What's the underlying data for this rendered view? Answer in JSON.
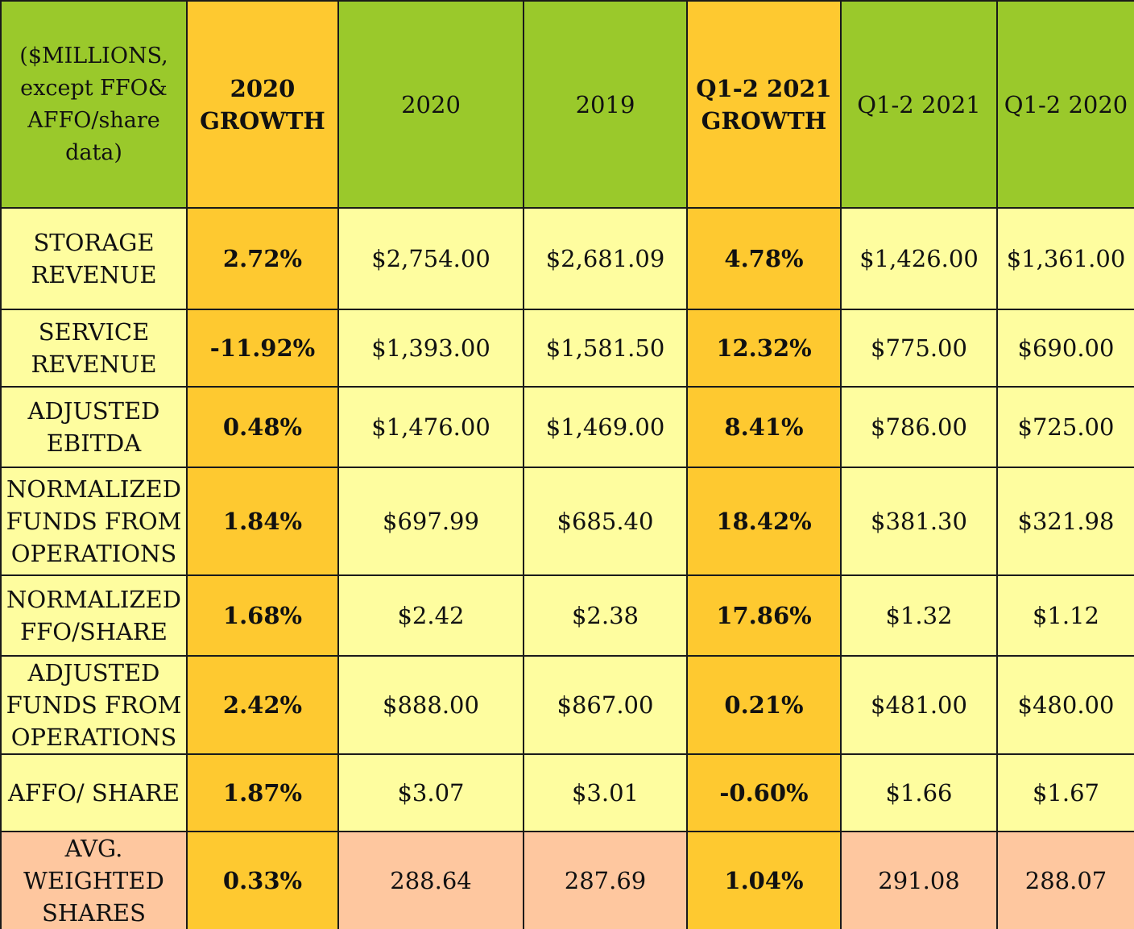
{
  "table": {
    "headers": [
      "($MILLIONS, except FFO& AFFO/share data)",
      "2020 GROWTH",
      "2020",
      "2019",
      "Q1-2 2021 GROWTH",
      "Q1-2 2021",
      "Q1-2 2020"
    ],
    "rows": [
      {
        "label": "STORAGE REVENUE",
        "cells": [
          "2.72%",
          "$2,754.00",
          "$2,681.09",
          "4.78%",
          "$1,426.00",
          "$1,361.00"
        ]
      },
      {
        "label": "SERVICE REVENUE",
        "cells": [
          "-11.92%",
          "$1,393.00",
          "$1,581.50",
          "12.32%",
          "$775.00",
          "$690.00"
        ]
      },
      {
        "label": "ADJUSTED EBITDA",
        "cells": [
          "0.48%",
          "$1,476.00",
          "$1,469.00",
          "8.41%",
          "$786.00",
          "$725.00"
        ]
      },
      {
        "label": "NORMALIZED FUNDS FROM OPERATIONS",
        "cells": [
          "1.84%",
          "$697.99",
          "$685.40",
          "18.42%",
          "$381.30",
          "$321.98"
        ]
      },
      {
        "label": "NORMALIZED FFO/SHARE",
        "cells": [
          "1.68%",
          "$2.42",
          "$2.38",
          "17.86%",
          "$1.32",
          "$1.12"
        ]
      },
      {
        "label": "ADJUSTED FUNDS FROM OPERATIONS",
        "cells": [
          "2.42%",
          "$888.00",
          "$867.00",
          "0.21%",
          "$481.00",
          "$480.00"
        ]
      },
      {
        "label": "AFFO/ SHARE",
        "cells": [
          "1.87%",
          "$3.07",
          "$3.01",
          "-0.60%",
          "$1.66",
          "$1.67"
        ]
      },
      {
        "label": "AVG. WEIGHTED SHARES",
        "cells": [
          "0.33%",
          "288.64",
          "287.69",
          "1.04%",
          "291.08",
          "288.07"
        ]
      }
    ]
  },
  "colors": {
    "header_green": "#9ac92b",
    "growth_orange": "#fec930",
    "row_yellow": "#fefd9f",
    "shares_peach": "#fec79f"
  }
}
